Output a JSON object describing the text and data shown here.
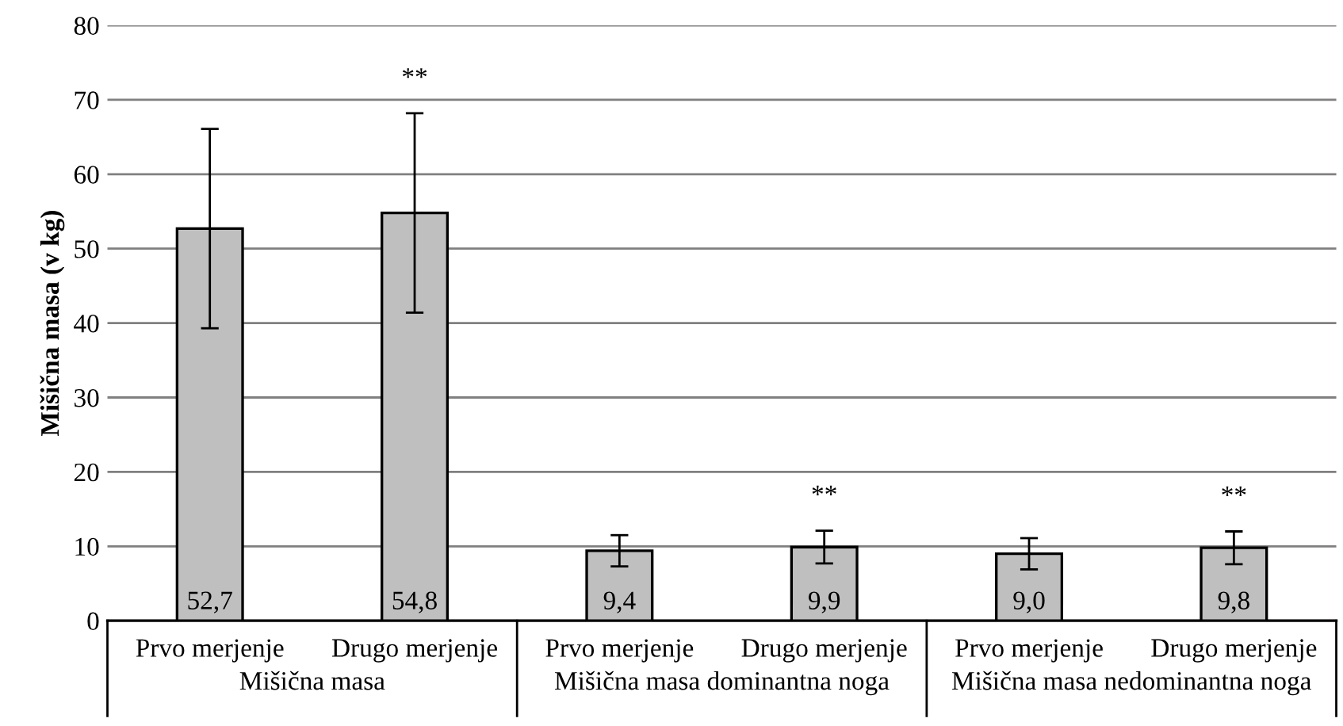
{
  "chart_data": {
    "type": "bar",
    "ylabel": "Mišična masa (v kg)",
    "categories": [
      "Prvo merjenje",
      "Drugo merjenje",
      "Prvo merjenje",
      "Drugo merjenje",
      "Prvo merjenje",
      "Drugo merjenje"
    ],
    "values": [
      52.7,
      54.8,
      9.4,
      9.9,
      9.0,
      9.8
    ],
    "value_labels": [
      "52,7",
      "54,8",
      "9,4",
      "9,9",
      "9,0",
      "9,8"
    ],
    "errors": [
      13.4,
      13.4,
      2.1,
      2.2,
      2.1,
      2.2
    ],
    "color": "#bfbfbf",
    "ylim": [
      0,
      80
    ],
    "yticks": [
      0,
      10,
      20,
      30,
      40,
      50,
      60,
      70,
      80
    ],
    "grid": "y",
    "annotations": [
      "Mišična masa",
      "Mišična masa dominantna noga",
      "Mišična masa nedominantna noga",
      "**",
      "**",
      "**"
    ]
  }
}
